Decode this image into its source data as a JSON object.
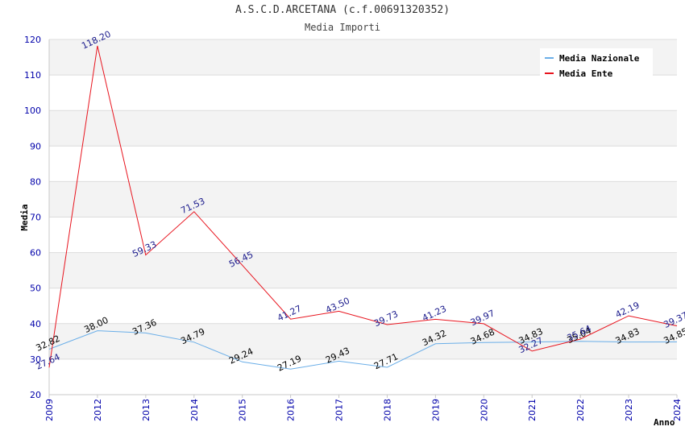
{
  "chart_data": {
    "type": "line",
    "title": "A.S.C.D.ARCETANA (c.f.00691320352)",
    "subtitle": "Media Importi",
    "xlabel": "Anno",
    "ylabel": "Media",
    "ylim": [
      20,
      120
    ],
    "yticks": [
      20,
      30,
      40,
      50,
      60,
      70,
      80,
      90,
      100,
      110,
      120
    ],
    "x": [
      "2009",
      "2012",
      "2013",
      "2014",
      "2015",
      "2016",
      "2017",
      "2018",
      "2019",
      "2020",
      "2021",
      "2022",
      "2023",
      "2024"
    ],
    "grid": true,
    "legend_position": "top-right",
    "series": [
      {
        "name": "Media Nazionale",
        "color": "#6aaee8",
        "label_color": "#000000",
        "values": [
          32.82,
          38.0,
          37.36,
          34.79,
          29.24,
          27.19,
          29.43,
          27.71,
          34.32,
          34.68,
          34.83,
          35.04,
          34.83,
          34.85
        ],
        "labels": [
          "32.82",
          "38.00",
          "37.36",
          "34.79",
          "29.24",
          "27.19",
          "29.43",
          "27.71",
          "34.32",
          "34.68",
          "34.83",
          "35.04",
          "34.83",
          "34.85"
        ]
      },
      {
        "name": "Media Ente",
        "color": "#e8141e",
        "label_color": "#1a1a8c",
        "values": [
          27.64,
          118.2,
          59.33,
          71.53,
          56.45,
          41.27,
          43.5,
          39.73,
          41.23,
          39.97,
          32.27,
          35.64,
          42.19,
          39.37
        ],
        "labels": [
          "27.64",
          "118.20",
          "59.33",
          "71.53",
          "56.45",
          "41.27",
          "43.50",
          "39.73",
          "41.23",
          "39.97",
          "32.27",
          "35.64",
          "42.19",
          "39.37"
        ]
      }
    ]
  }
}
